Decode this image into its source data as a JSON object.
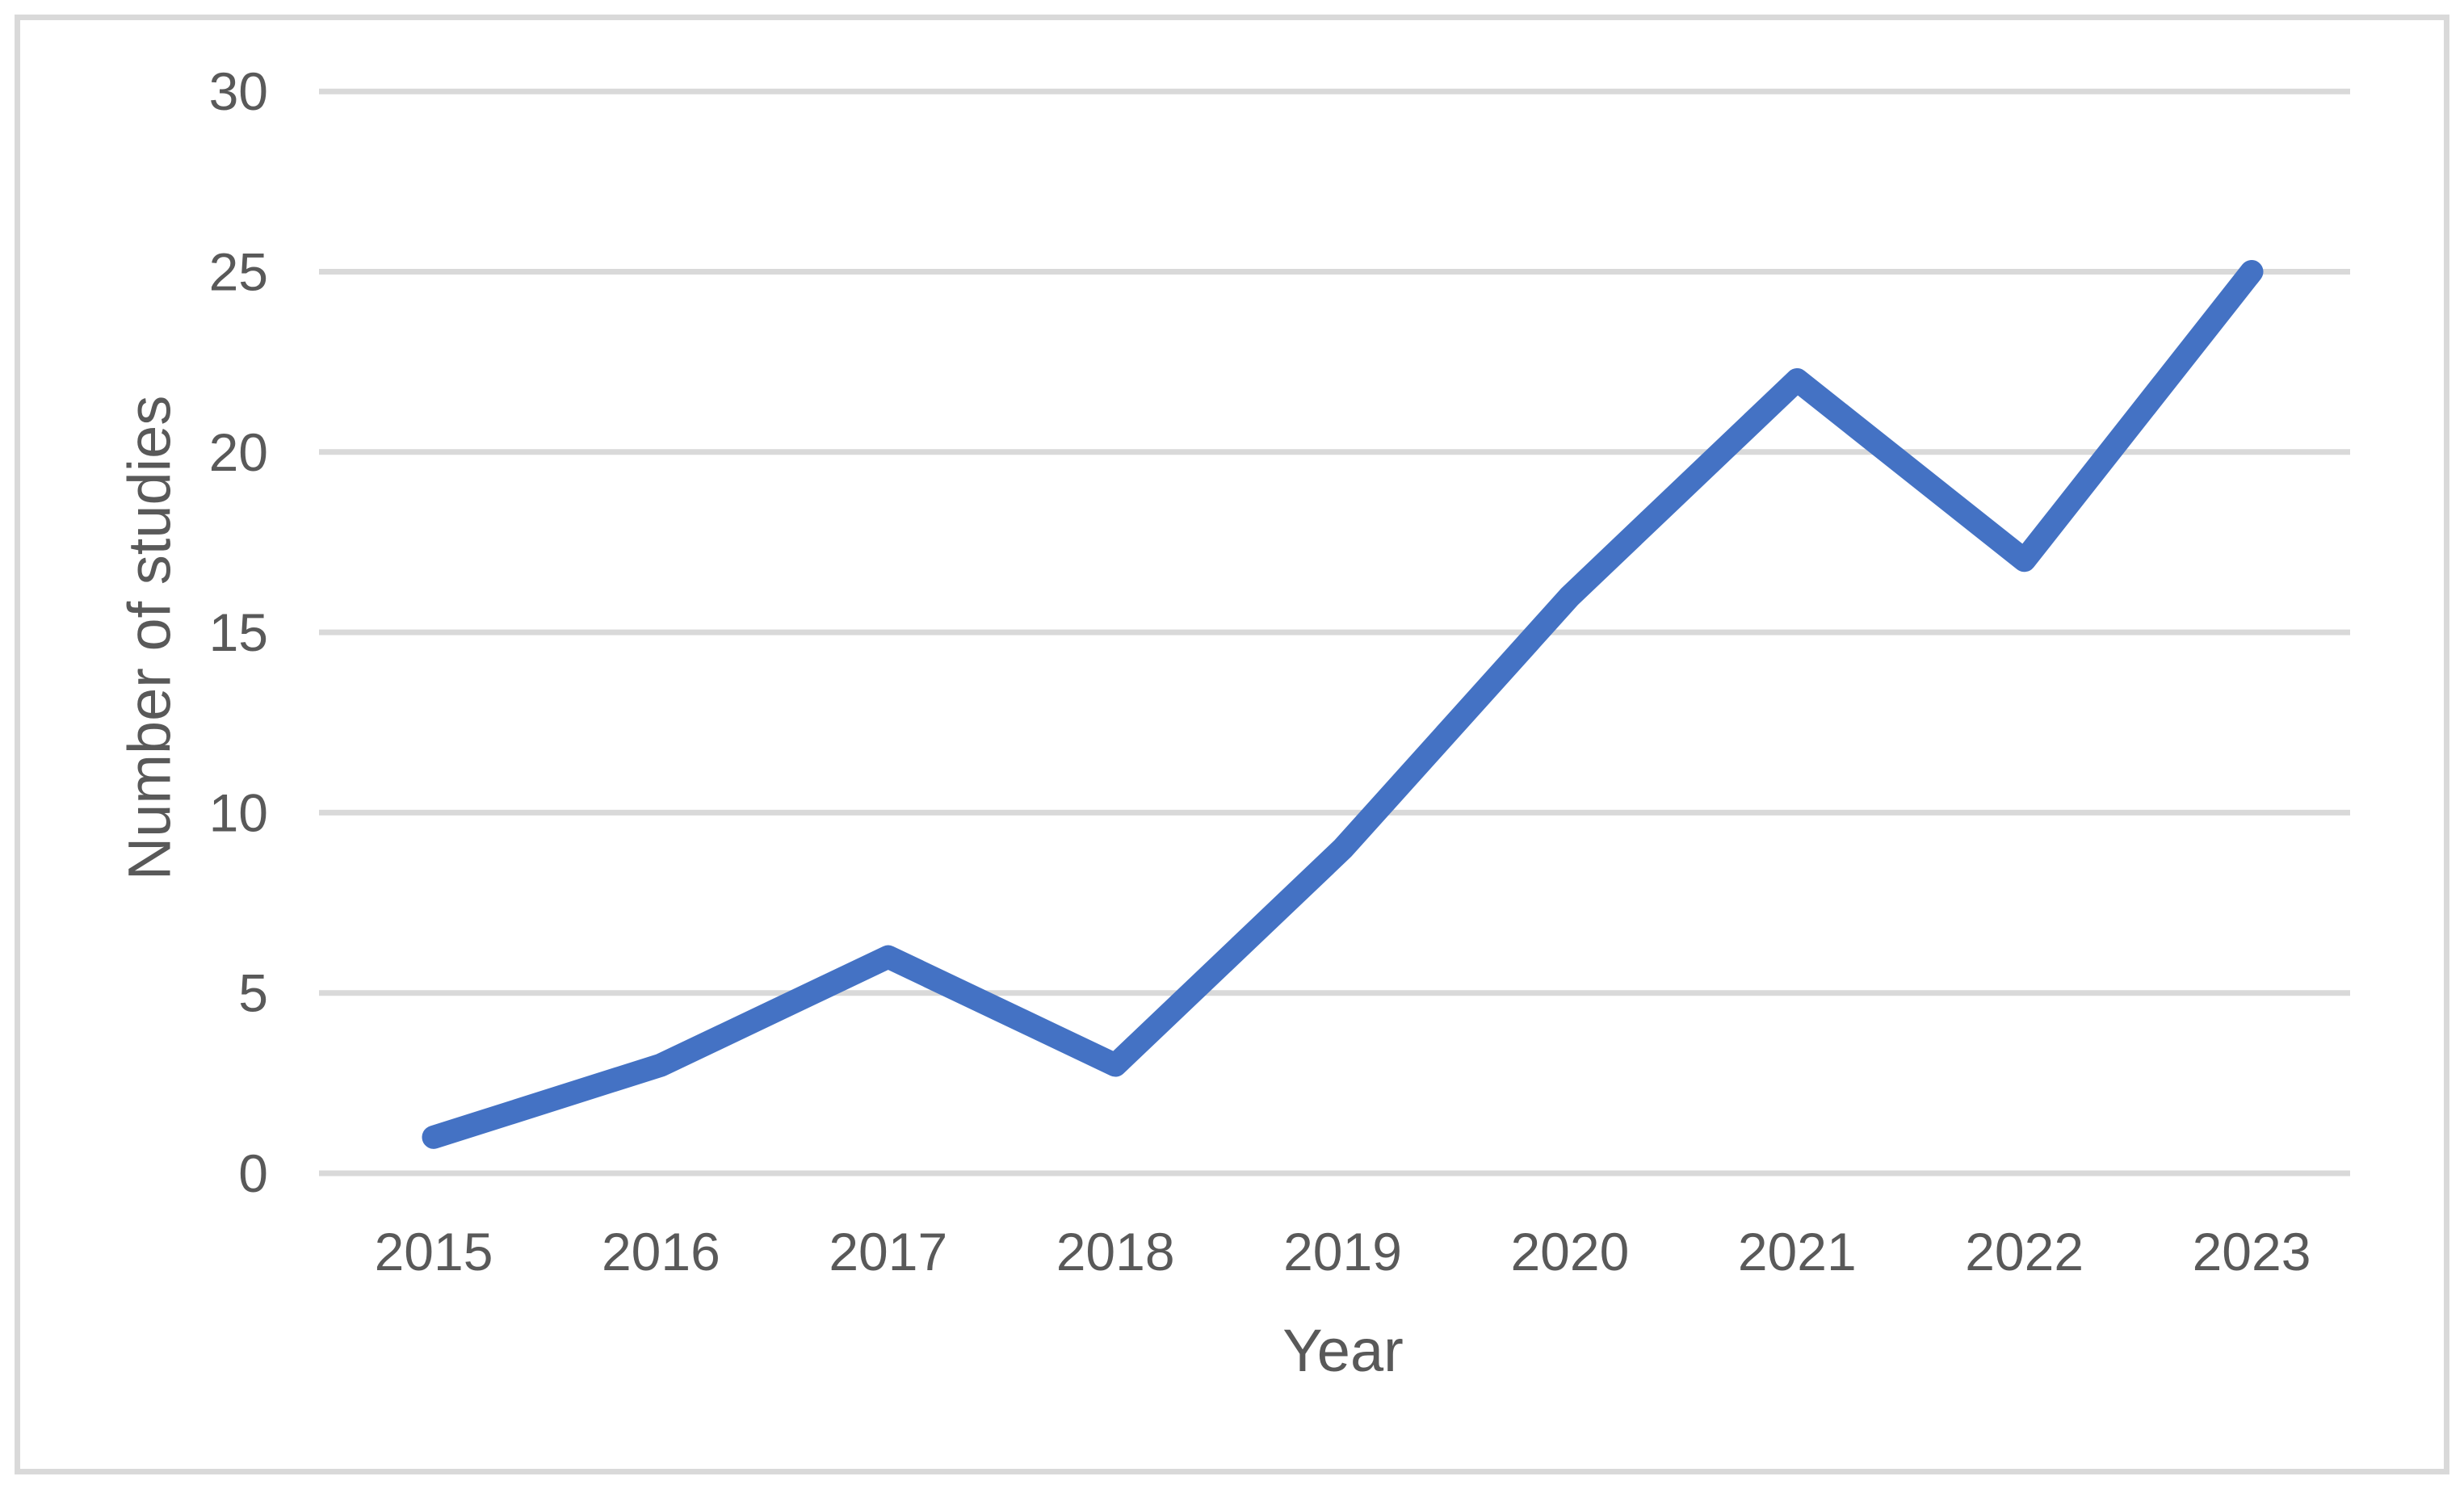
{
  "chart_data": {
    "type": "line",
    "title": "",
    "categories": [
      "2015",
      "2016",
      "2017",
      "2018",
      "2019",
      "2020",
      "2021",
      "2022",
      "2023"
    ],
    "series": [
      {
        "name": "Number of studies",
        "values": [
          1,
          3,
          6,
          3,
          9,
          16,
          22,
          17,
          25
        ]
      }
    ],
    "xlabel": "Year",
    "ylabel": "Number of studies",
    "ylim": [
      0,
      30
    ],
    "yticks": [
      0,
      5,
      10,
      15,
      20,
      25,
      30
    ],
    "grid": "horizontal-only",
    "legend_position": "none",
    "colors": {
      "line": "#4472C4",
      "gridline": "#D9D9D9",
      "axis_line": "#D9D9D9",
      "tick_text": "#595959",
      "axis_title_text": "#595959",
      "figure_border": "#D9D9D9",
      "background": "#FFFFFF"
    }
  }
}
